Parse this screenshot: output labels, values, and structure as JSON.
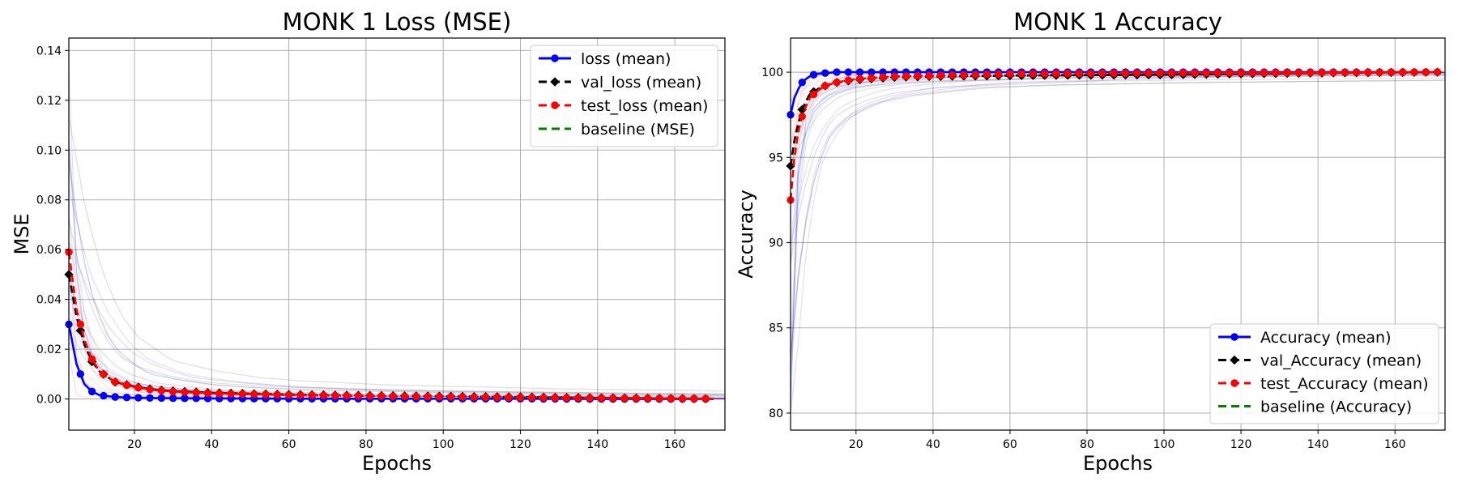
{
  "chart_data": [
    {
      "type": "line",
      "title": "MONK 1 Loss (MSE)",
      "xlabel": "Epochs",
      "ylabel": "MSE",
      "xlim": [
        3,
        173
      ],
      "ylim": [
        -0.0125,
        0.145
      ],
      "xticks": [
        20,
        40,
        60,
        80,
        100,
        120,
        140,
        160
      ],
      "yticks": [
        0.0,
        0.02,
        0.04,
        0.06,
        0.08,
        0.1,
        0.12,
        0.14
      ],
      "ytick_decimals": 2,
      "grid": true,
      "legend_position": "top-right",
      "series": [
        {
          "name": "loss (mean)",
          "color": "#0000ff",
          "marker": "circle",
          "dash": "solid",
          "x": [
            3,
            5,
            7,
            9,
            11,
            15,
            20,
            25,
            30,
            40,
            60,
            80,
            100,
            120,
            140,
            160,
            170
          ],
          "y": [
            0.03,
            0.014,
            0.006,
            0.003,
            0.0015,
            0.0008,
            0.0005,
            0.0004,
            0.0003,
            0.0002,
            0.0001,
            0.0001,
            0.0001,
            0.0001,
            0.0,
            0.0,
            0.0
          ]
        },
        {
          "name": "val_loss (mean)",
          "color": "#000000",
          "marker": "diamond",
          "dash": "dashed",
          "x": [
            3,
            5,
            7,
            9,
            11,
            15,
            20,
            25,
            30,
            40,
            60,
            80,
            100,
            120,
            140,
            160,
            170
          ],
          "y": [
            0.05,
            0.033,
            0.022,
            0.015,
            0.011,
            0.0068,
            0.005,
            0.0038,
            0.0032,
            0.0025,
            0.0018,
            0.0014,
            0.0011,
            0.0008,
            0.0005,
            0.0002,
            0.0001
          ]
        },
        {
          "name": "test_loss (mean)",
          "color": "#ff0000",
          "marker": "circle",
          "dash": "dashed",
          "x": [
            3,
            5,
            7,
            9,
            11,
            15,
            20,
            25,
            30,
            40,
            60,
            80,
            100,
            120,
            140,
            160,
            170
          ],
          "y": [
            0.059,
            0.036,
            0.024,
            0.016,
            0.011,
            0.0068,
            0.0048,
            0.0036,
            0.003,
            0.0022,
            0.0016,
            0.0012,
            0.0009,
            0.0006,
            0.0004,
            0.0002,
            0.0001
          ]
        },
        {
          "name": "baseline (MSE)",
          "color": "#008000",
          "marker": "none",
          "dash": "dashed",
          "x": [],
          "y": []
        }
      ],
      "marker_interval": 3
    },
    {
      "type": "line",
      "title": "MONK 1 Accuracy",
      "xlabel": "Epochs",
      "ylabel": "Accuracy",
      "xlim": [
        3,
        173
      ],
      "ylim": [
        79,
        102
      ],
      "xticks": [
        20,
        40,
        60,
        80,
        100,
        120,
        140,
        160
      ],
      "yticks": [
        80,
        85,
        90,
        95,
        100
      ],
      "ytick_decimals": 0,
      "grid": true,
      "legend_position": "bottom-right",
      "series": [
        {
          "name": "Accuracy (mean)",
          "color": "#0000ff",
          "marker": "circle",
          "dash": "solid",
          "x": [
            3,
            4,
            5,
            6,
            7,
            8,
            9,
            10,
            12,
            15,
            20,
            30,
            60,
            100,
            140,
            172
          ],
          "y": [
            97.5,
            98.5,
            99.0,
            99.4,
            99.6,
            99.75,
            99.85,
            99.9,
            99.95,
            100,
            100,
            100,
            100,
            100,
            100,
            100
          ]
        },
        {
          "name": "val_Accuracy (mean)",
          "color": "#000000",
          "marker": "diamond",
          "dash": "dashed",
          "x": [
            3,
            4,
            5,
            6,
            7,
            8,
            10,
            12,
            15,
            20,
            30,
            40,
            60,
            100,
            140,
            172
          ],
          "y": [
            94.5,
            96.0,
            97.0,
            97.8,
            98.3,
            98.7,
            99.0,
            99.2,
            99.4,
            99.55,
            99.7,
            99.75,
            99.8,
            99.85,
            99.95,
            100
          ]
        },
        {
          "name": "test_Accuracy (mean)",
          "color": "#ff0000",
          "marker": "circle",
          "dash": "dashed",
          "x": [
            3,
            4,
            5,
            6,
            7,
            8,
            10,
            12,
            15,
            20,
            30,
            40,
            60,
            100,
            140,
            172
          ],
          "y": [
            92.5,
            95.0,
            96.5,
            97.4,
            98.0,
            98.5,
            98.9,
            99.2,
            99.4,
            99.6,
            99.75,
            99.8,
            99.9,
            99.95,
            99.97,
            100
          ]
        },
        {
          "name": "baseline (Accuracy)",
          "color": "#008000",
          "marker": "none",
          "dash": "dashed",
          "x": [],
          "y": []
        }
      ],
      "marker_interval": 3
    }
  ]
}
